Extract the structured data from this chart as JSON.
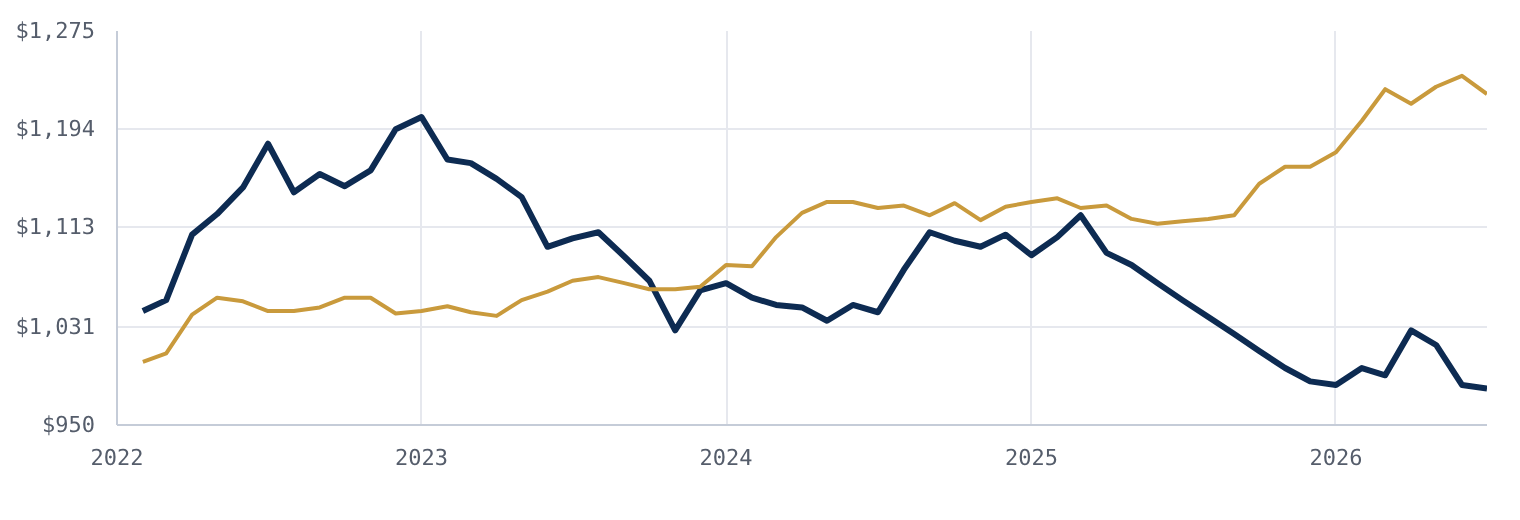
{
  "chart_data": {
    "type": "line",
    "x": [
      "2022-02",
      "2022-03",
      "2022-04",
      "2022-05",
      "2022-06",
      "2022-07",
      "2022-08",
      "2022-09",
      "2022-10",
      "2022-11",
      "2022-12",
      "2023-01",
      "2023-02",
      "2023-03",
      "2023-04",
      "2023-05",
      "2023-06",
      "2023-07",
      "2023-08",
      "2023-09",
      "2023-10",
      "2023-11",
      "2023-12",
      "2024-01",
      "2024-02",
      "2024-03",
      "2024-04",
      "2024-05",
      "2024-06",
      "2024-07",
      "2024-08",
      "2024-09",
      "2024-10",
      "2024-11",
      "2024-12",
      "2025-01",
      "2025-02",
      "2025-03",
      "2025-04",
      "2025-05",
      "2025-06",
      "2025-07",
      "2025-08",
      "2025-09",
      "2025-10",
      "2025-11",
      "2025-12",
      "2026-01",
      "2026-02",
      "2026-03",
      "2026-04",
      "2026-05",
      "2026-06",
      "2026-07"
    ],
    "series": [
      {
        "color": "#0d2b52",
        "values": [
          1044,
          1053,
          1107,
          1124,
          1146,
          1182,
          1142,
          1157,
          1147,
          1160,
          1194,
          1204,
          1169,
          1166,
          1153,
          1138,
          1097,
          1104,
          1109,
          1089,
          1069,
          1028,
          1061,
          1067,
          1055,
          1049,
          1047,
          1036,
          1049,
          1043,
          1078,
          1109,
          1102,
          1097,
          1107,
          1090,
          1105,
          1123,
          1092,
          1082,
          1067,
          1053,
          1039,
          1025,
          1011,
          997,
          986,
          983,
          997,
          991,
          1028,
          1016,
          983,
          980
        ]
      },
      {
        "color": "#c99a3c",
        "values": [
          1002,
          1009,
          1041,
          1055,
          1052,
          1044,
          1044,
          1047,
          1055,
          1055,
          1042,
          1044,
          1048,
          1043,
          1040,
          1053,
          1060,
          1069,
          1072,
          1067,
          1062,
          1062,
          1064,
          1082,
          1081,
          1105,
          1125,
          1134,
          1134,
          1129,
          1131,
          1123,
          1133,
          1119,
          1130,
          1134,
          1137,
          1129,
          1131,
          1120,
          1116,
          1118,
          1120,
          1123,
          1149,
          1163,
          1163,
          1175,
          1201,
          1227,
          1215,
          1229,
          1238,
          1223
        ]
      }
    ],
    "xlim": [
      "2022",
      "2026-07"
    ],
    "xticks": [
      {
        "value": "2022",
        "label": "2022"
      },
      {
        "value": "2023",
        "label": "2023"
      },
      {
        "value": "2024",
        "label": "2024"
      },
      {
        "value": "2025",
        "label": "2025"
      },
      {
        "value": "2026",
        "label": "2026"
      }
    ],
    "ylim": [
      950,
      1275
    ],
    "yticks": [
      {
        "value": 950,
        "label": "$950"
      },
      {
        "value": 1031,
        "label": "$1,031"
      },
      {
        "value": 1113,
        "label": "$1,113"
      },
      {
        "value": 1194,
        "label": "$1,194"
      },
      {
        "value": 1275,
        "label": "$1,275"
      }
    ],
    "grid": true,
    "line_style": "solid",
    "marker": "none"
  }
}
